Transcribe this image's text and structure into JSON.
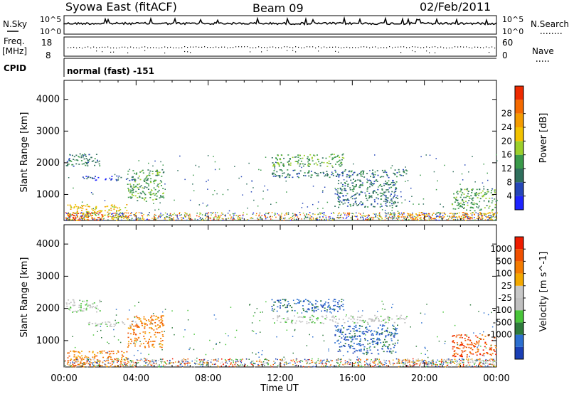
{
  "header": {
    "station": "Syowa East (fitACF)",
    "beam": "Beam 09",
    "date": "02/Feb/2011"
  },
  "panels": {
    "nsky_label": "N.Sky",
    "nsky_top": "10^5",
    "nsky_bottom": "10^0",
    "nsearch_label": "N.Search",
    "nsearch_top": "10^5",
    "nsearch_bottom": "10^0",
    "freq_label": "Freq.",
    "freq_unit": "[MHz]",
    "freq_top": "18",
    "freq_bottom": "8",
    "nave_label": "Nave",
    "nave_top": "60",
    "nave_bottom": "0",
    "cpid_label": "CPID",
    "cpid_value": "normal (fast) -151"
  },
  "chart_data": [
    {
      "type": "heatmap",
      "title": "",
      "xlabel": "Time UT",
      "ylabel": "Slant Range [km]",
      "xlim": [
        "00:00",
        "24:00"
      ],
      "xticks": [
        "00:00",
        "04:00",
        "08:00",
        "12:00",
        "16:00",
        "20:00",
        "00:00"
      ],
      "ylim": [
        180,
        4600
      ],
      "yticks": [
        1000,
        2000,
        3000,
        4000
      ],
      "colorbar": {
        "label": "Power [dB]",
        "ticks": [
          4,
          8,
          12,
          16,
          20,
          24,
          28
        ],
        "colors": [
          "#1e24ff",
          "#2546b8",
          "#2f6f5d",
          "#3a9a4a",
          "#9ccf2a",
          "#f2c200",
          "#f49b00",
          "#f56a00",
          "#ee2a00"
        ]
      },
      "regions": [
        {
          "t0": 0.1,
          "t1": 2.0,
          "r0": 1900,
          "r1": 2300,
          "level": 2
        },
        {
          "t0": 1.0,
          "t1": 4.0,
          "r0": 1450,
          "r1": 1600,
          "level": 1
        },
        {
          "t0": 0.1,
          "t1": 3.5,
          "r0": 200,
          "r1": 700,
          "level": 5
        },
        {
          "t0": 0.2,
          "t1": 2.2,
          "r0": 200,
          "r1": 450,
          "level": 8
        },
        {
          "t0": 3.5,
          "t1": 5.5,
          "r0": 800,
          "r1": 1800,
          "level": 3
        },
        {
          "t0": 11.5,
          "t1": 15.5,
          "r0": 1900,
          "r1": 2300,
          "level": 3
        },
        {
          "t0": 11.5,
          "t1": 19.0,
          "r0": 1550,
          "r1": 1800,
          "level": 2
        },
        {
          "t0": 15.0,
          "t1": 18.5,
          "r0": 600,
          "r1": 1500,
          "level": 2
        },
        {
          "t0": 18.5,
          "t1": 24.0,
          "r0": 250,
          "r1": 450,
          "level": 6
        },
        {
          "t0": 21.5,
          "t1": 24.0,
          "r0": 500,
          "r1": 1200,
          "level": 3
        }
      ]
    },
    {
      "type": "heatmap",
      "title": "",
      "xlabel": "Time UT",
      "ylabel": "Slant Range [km]",
      "xlim": [
        "00:00",
        "24:00"
      ],
      "xticks": [
        "00:00",
        "04:00",
        "08:00",
        "12:00",
        "16:00",
        "20:00",
        "00:00"
      ],
      "ylim": [
        180,
        4600
      ],
      "yticks": [
        1000,
        2000,
        3000,
        4000
      ],
      "colorbar": {
        "label": "Velocity [m s^-1]",
        "ticks": [
          1000,
          500,
          100,
          25,
          -25,
          -100,
          -500,
          -1000
        ],
        "colors": [
          "#1a3fb5",
          "#2c6fd0",
          "#2e7a3c",
          "#49c53a",
          "#c0c0c0",
          "#c8c8c8",
          "#f3a800",
          "#f47b00",
          "#f05000",
          "#ee1c00"
        ]
      },
      "regions": [
        {
          "t0": 0.1,
          "t1": 2.0,
          "r0": 1900,
          "r1": 2300,
          "level": 4
        },
        {
          "t0": 1.0,
          "t1": 4.0,
          "r0": 1450,
          "r1": 1600,
          "level": 4
        },
        {
          "t0": 0.1,
          "t1": 3.5,
          "r0": 200,
          "r1": 700,
          "level": 7
        },
        {
          "t0": 3.5,
          "t1": 5.5,
          "r0": 800,
          "r1": 1800,
          "level": 7
        },
        {
          "t0": 11.5,
          "t1": 15.5,
          "r0": 1900,
          "r1": 2300,
          "level": 1
        },
        {
          "t0": 11.5,
          "t1": 19.0,
          "r0": 1550,
          "r1": 1800,
          "level": 4
        },
        {
          "t0": 15.0,
          "t1": 18.5,
          "r0": 600,
          "r1": 1500,
          "level": 1
        },
        {
          "t0": 18.5,
          "t1": 24.0,
          "r0": 250,
          "r1": 450,
          "level": 5
        },
        {
          "t0": 21.5,
          "t1": 24.0,
          "r0": 500,
          "r1": 1200,
          "level": 8
        }
      ]
    }
  ]
}
